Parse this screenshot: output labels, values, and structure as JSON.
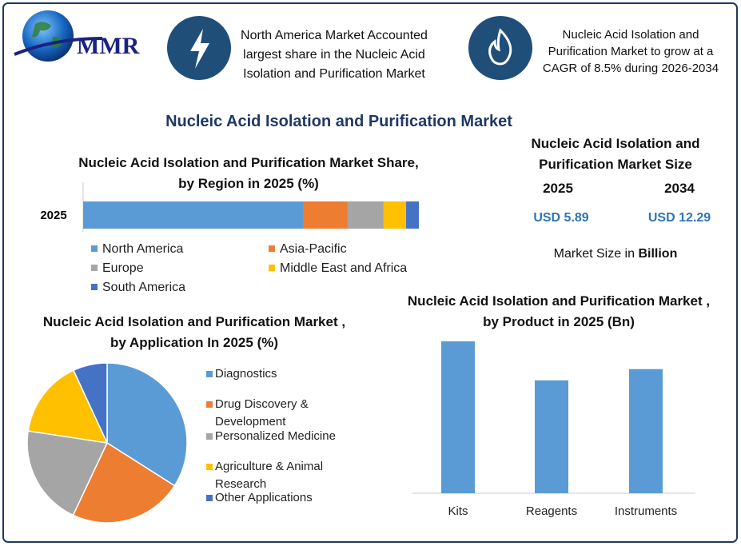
{
  "logo": {
    "text": "MMR"
  },
  "header": {
    "box_1": "North America Market Accounted largest share in the Nucleic Acid Isolation and Purification Market",
    "box_2": "Nucleic Acid Isolation and Purification Market to grow at a CAGR of 8.5% during 2026-2034"
  },
  "title": "Nucleic Acid Isolation and Purification Market",
  "market_size": {
    "title": "Nucleic Acid Isolation and Purification Market Size",
    "years": [
      "2025",
      "2034"
    ],
    "values": [
      "USD 5.89",
      "USD 12.29"
    ],
    "note": "Market Size in",
    "unit": "Billion"
  },
  "chart_data": [
    {
      "type": "stacked-bar",
      "title": "Nucleic Acid Isolation and Purification Market Share, by Region in 2025 (%)",
      "categories": [
        "2025"
      ],
      "series": [
        {
          "name": "North America",
          "color": "#5b9bd5",
          "values": [
            65.7
          ]
        },
        {
          "name": "Asia-Pacific",
          "color": "#ed7d31",
          "values": [
            13.1
          ]
        },
        {
          "name": "Europe",
          "color": "#a5a5a5",
          "values": [
            10.7
          ]
        },
        {
          "name": "Middle East and Africa",
          "color": "#ffc000",
          "values": [
            6.7
          ]
        },
        {
          "name": "South America",
          "color": "#4472c4",
          "values": [
            3.8
          ]
        }
      ]
    },
    {
      "type": "pie",
      "title": "Nucleic Acid Isolation and Purification Market , by Application In 2025 (%)",
      "categories": [
        "Diagnostics",
        "Drug Discovery & Development",
        "Personalized Medicine",
        "Agriculture & Animal Research",
        "Other Applications"
      ],
      "values": [
        34,
        23,
        20.4,
        15.7,
        6.9
      ],
      "colors": [
        "#5b9bd5",
        "#ed7d31",
        "#a5a5a5",
        "#ffc000",
        "#4472c4"
      ]
    },
    {
      "type": "bar",
      "title": "Nucleic Acid Isolation and Purification Market , by Product in 2025 (Bn)",
      "categories": [
        "Kits",
        "Reagents",
        "Instruments"
      ],
      "values": [
        2.3,
        1.71,
        1.88
      ],
      "color": "#5b9bd5"
    }
  ]
}
